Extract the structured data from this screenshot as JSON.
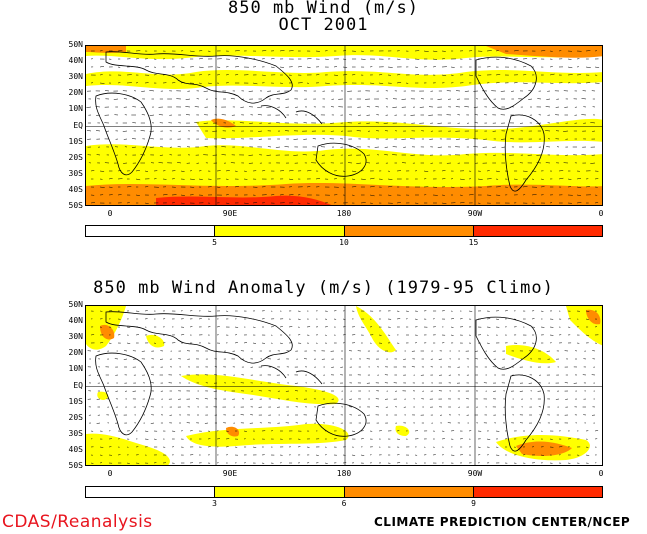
{
  "panel1": {
    "title_line1": "850 mb Wind (m/s)",
    "title_line2": "OCT 2001",
    "lat_labels": [
      "50N",
      "40N",
      "30N",
      "20N",
      "10N",
      "EQ",
      "10S",
      "20S",
      "30S",
      "40S",
      "50S"
    ],
    "lon_labels": [
      "0",
      "90E",
      "180",
      "90W",
      "0"
    ],
    "colorbar": {
      "colors": [
        "#ffffff",
        "#ffff00",
        "#ff8c00",
        "#ff2a00"
      ],
      "ticks": [
        "5",
        "10",
        "15"
      ]
    }
  },
  "panel2": {
    "title": "850 mb Wind Anomaly (m/s) (1979-95 Climo)",
    "lat_labels": [
      "50N",
      "40N",
      "30N",
      "20N",
      "10N",
      "EQ",
      "10S",
      "20S",
      "30S",
      "40S",
      "50S"
    ],
    "lon_labels": [
      "0",
      "90E",
      "180",
      "90W",
      "0"
    ],
    "colorbar": {
      "colors": [
        "#ffffff",
        "#ffff00",
        "#ff8c00",
        "#ff2a00"
      ],
      "ticks": [
        "3",
        "6",
        "9"
      ]
    }
  },
  "footer": {
    "left": "CDAS/Reanalysis",
    "right": "CLIMATE PREDICTION CENTER/NCEP"
  },
  "colors": {
    "fill_yellow": "#ffff00",
    "fill_orange": "#ff8c00",
    "fill_red": "#ff2a00",
    "footer_red": "#e8141e"
  }
}
